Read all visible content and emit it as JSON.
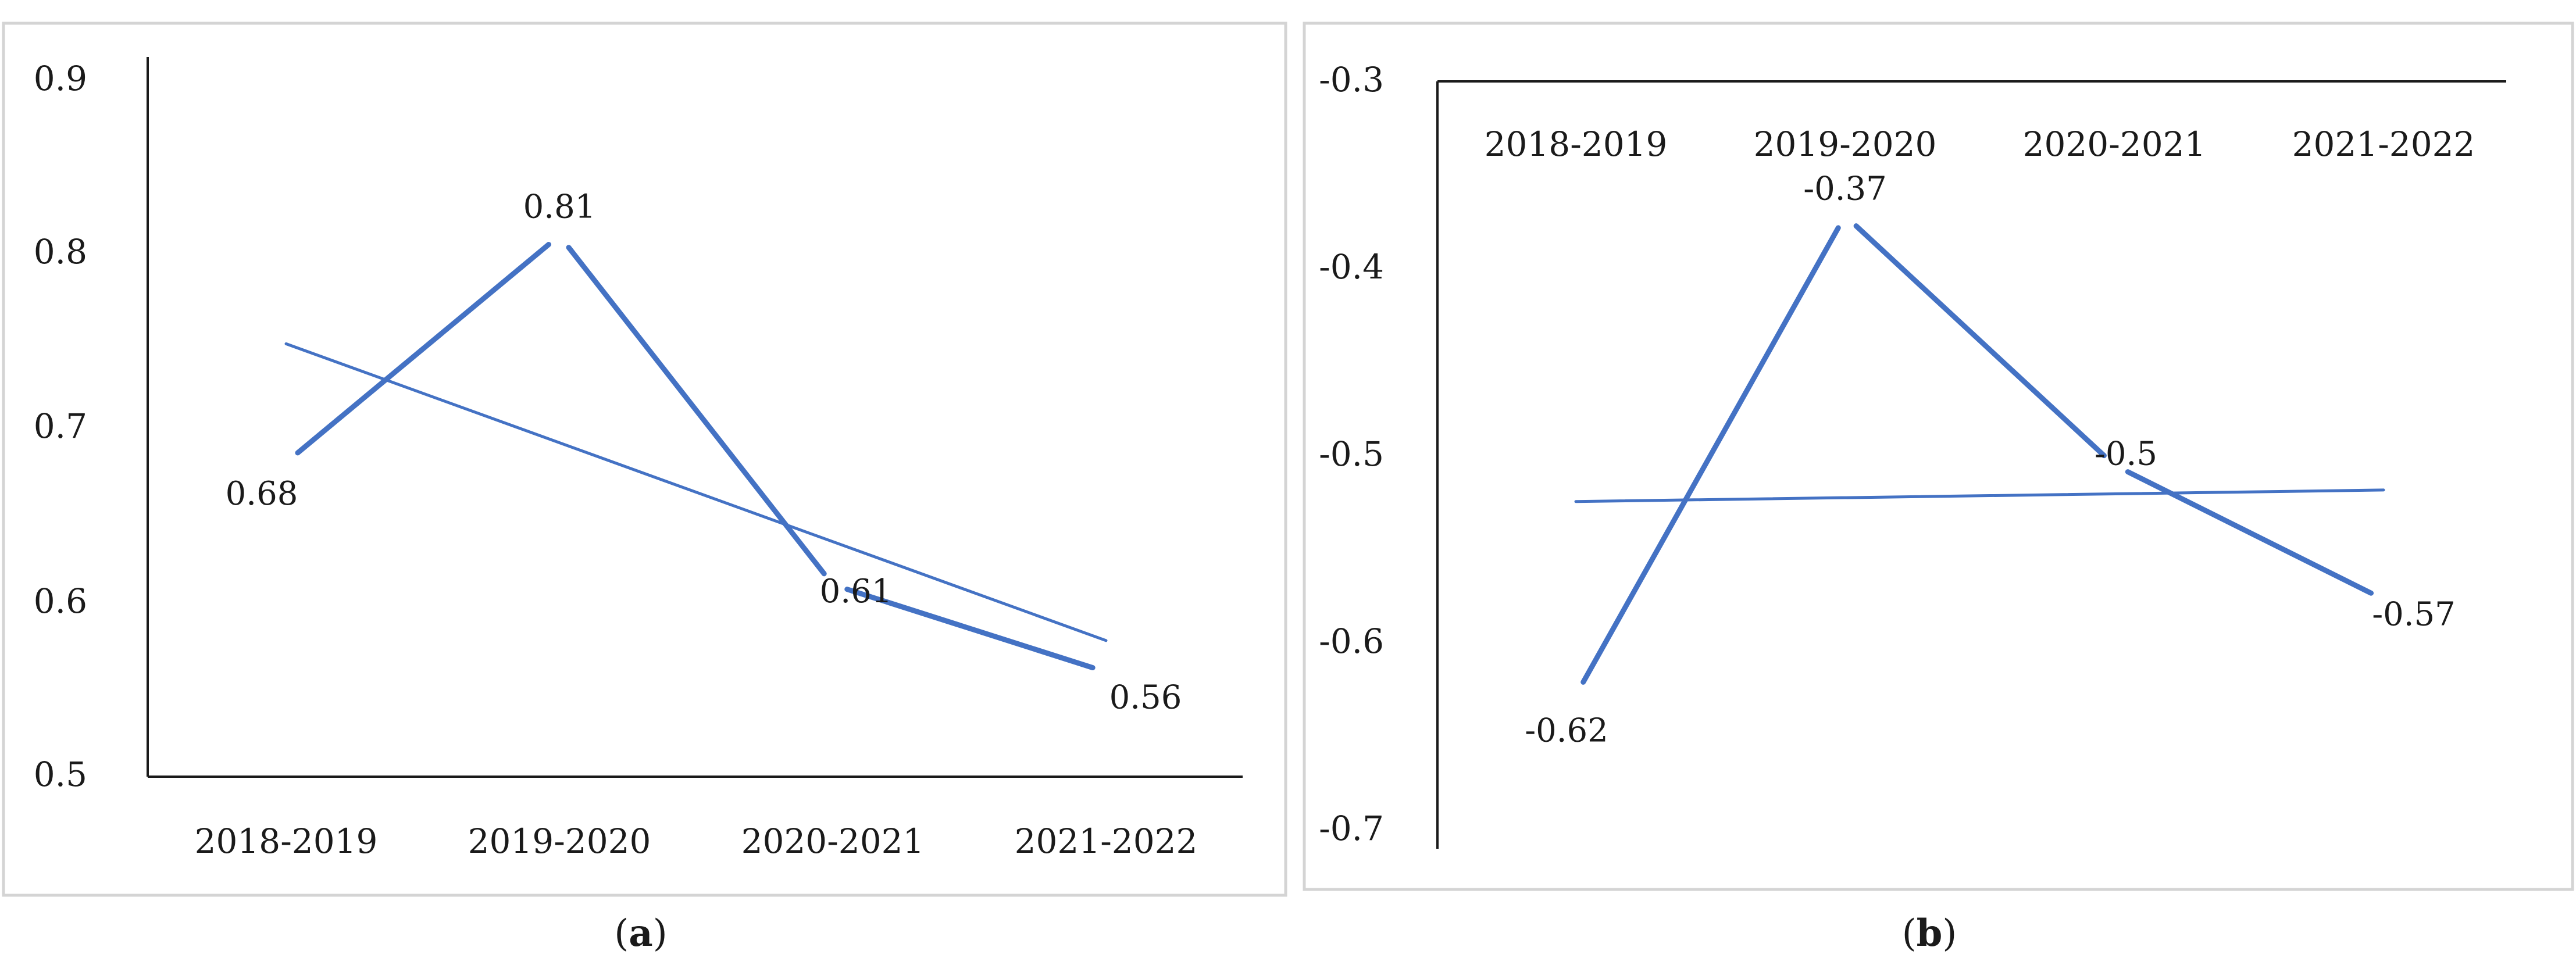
{
  "chart_data": [
    {
      "panel": "a",
      "type": "line",
      "categories": [
        "2018-2019",
        "2019-2020",
        "2020-2021",
        "2021-2022"
      ],
      "values": [
        0.68,
        0.81,
        0.61,
        0.56
      ],
      "data_labels": [
        "0.68",
        "0.81",
        "0.61",
        "0.56"
      ],
      "trendline": {
        "start": 0.748,
        "end": 0.578
      },
      "ylim": [
        0.5,
        0.9
      ],
      "yticks": [
        "0.9",
        "0.8",
        "0.7",
        "0.6",
        "0.5"
      ],
      "title": "",
      "xlabel": "",
      "ylabel": "",
      "grid": false,
      "color": "#4472c4"
    },
    {
      "panel": "b",
      "type": "line",
      "categories": [
        "2018-2019",
        "2019-2020",
        "2020-2021",
        "2021-2022"
      ],
      "values": [
        -0.62,
        -0.37,
        -0.5,
        -0.57
      ],
      "data_labels": [
        "-0.62",
        "-0.37",
        "-0.5",
        "-0.57"
      ],
      "trendline": {
        "start": -0.519,
        "end": -0.513
      },
      "ylim": [
        -0.7,
        -0.3
      ],
      "yticks": [
        "-0.3",
        "-0.4",
        "-0.5",
        "-0.6",
        "-0.7"
      ],
      "x_axis_position": "top",
      "title": "",
      "xlabel": "",
      "ylabel": "",
      "grid": false,
      "color": "#4472c4"
    }
  ],
  "captions": {
    "a": "a",
    "b": "b"
  }
}
